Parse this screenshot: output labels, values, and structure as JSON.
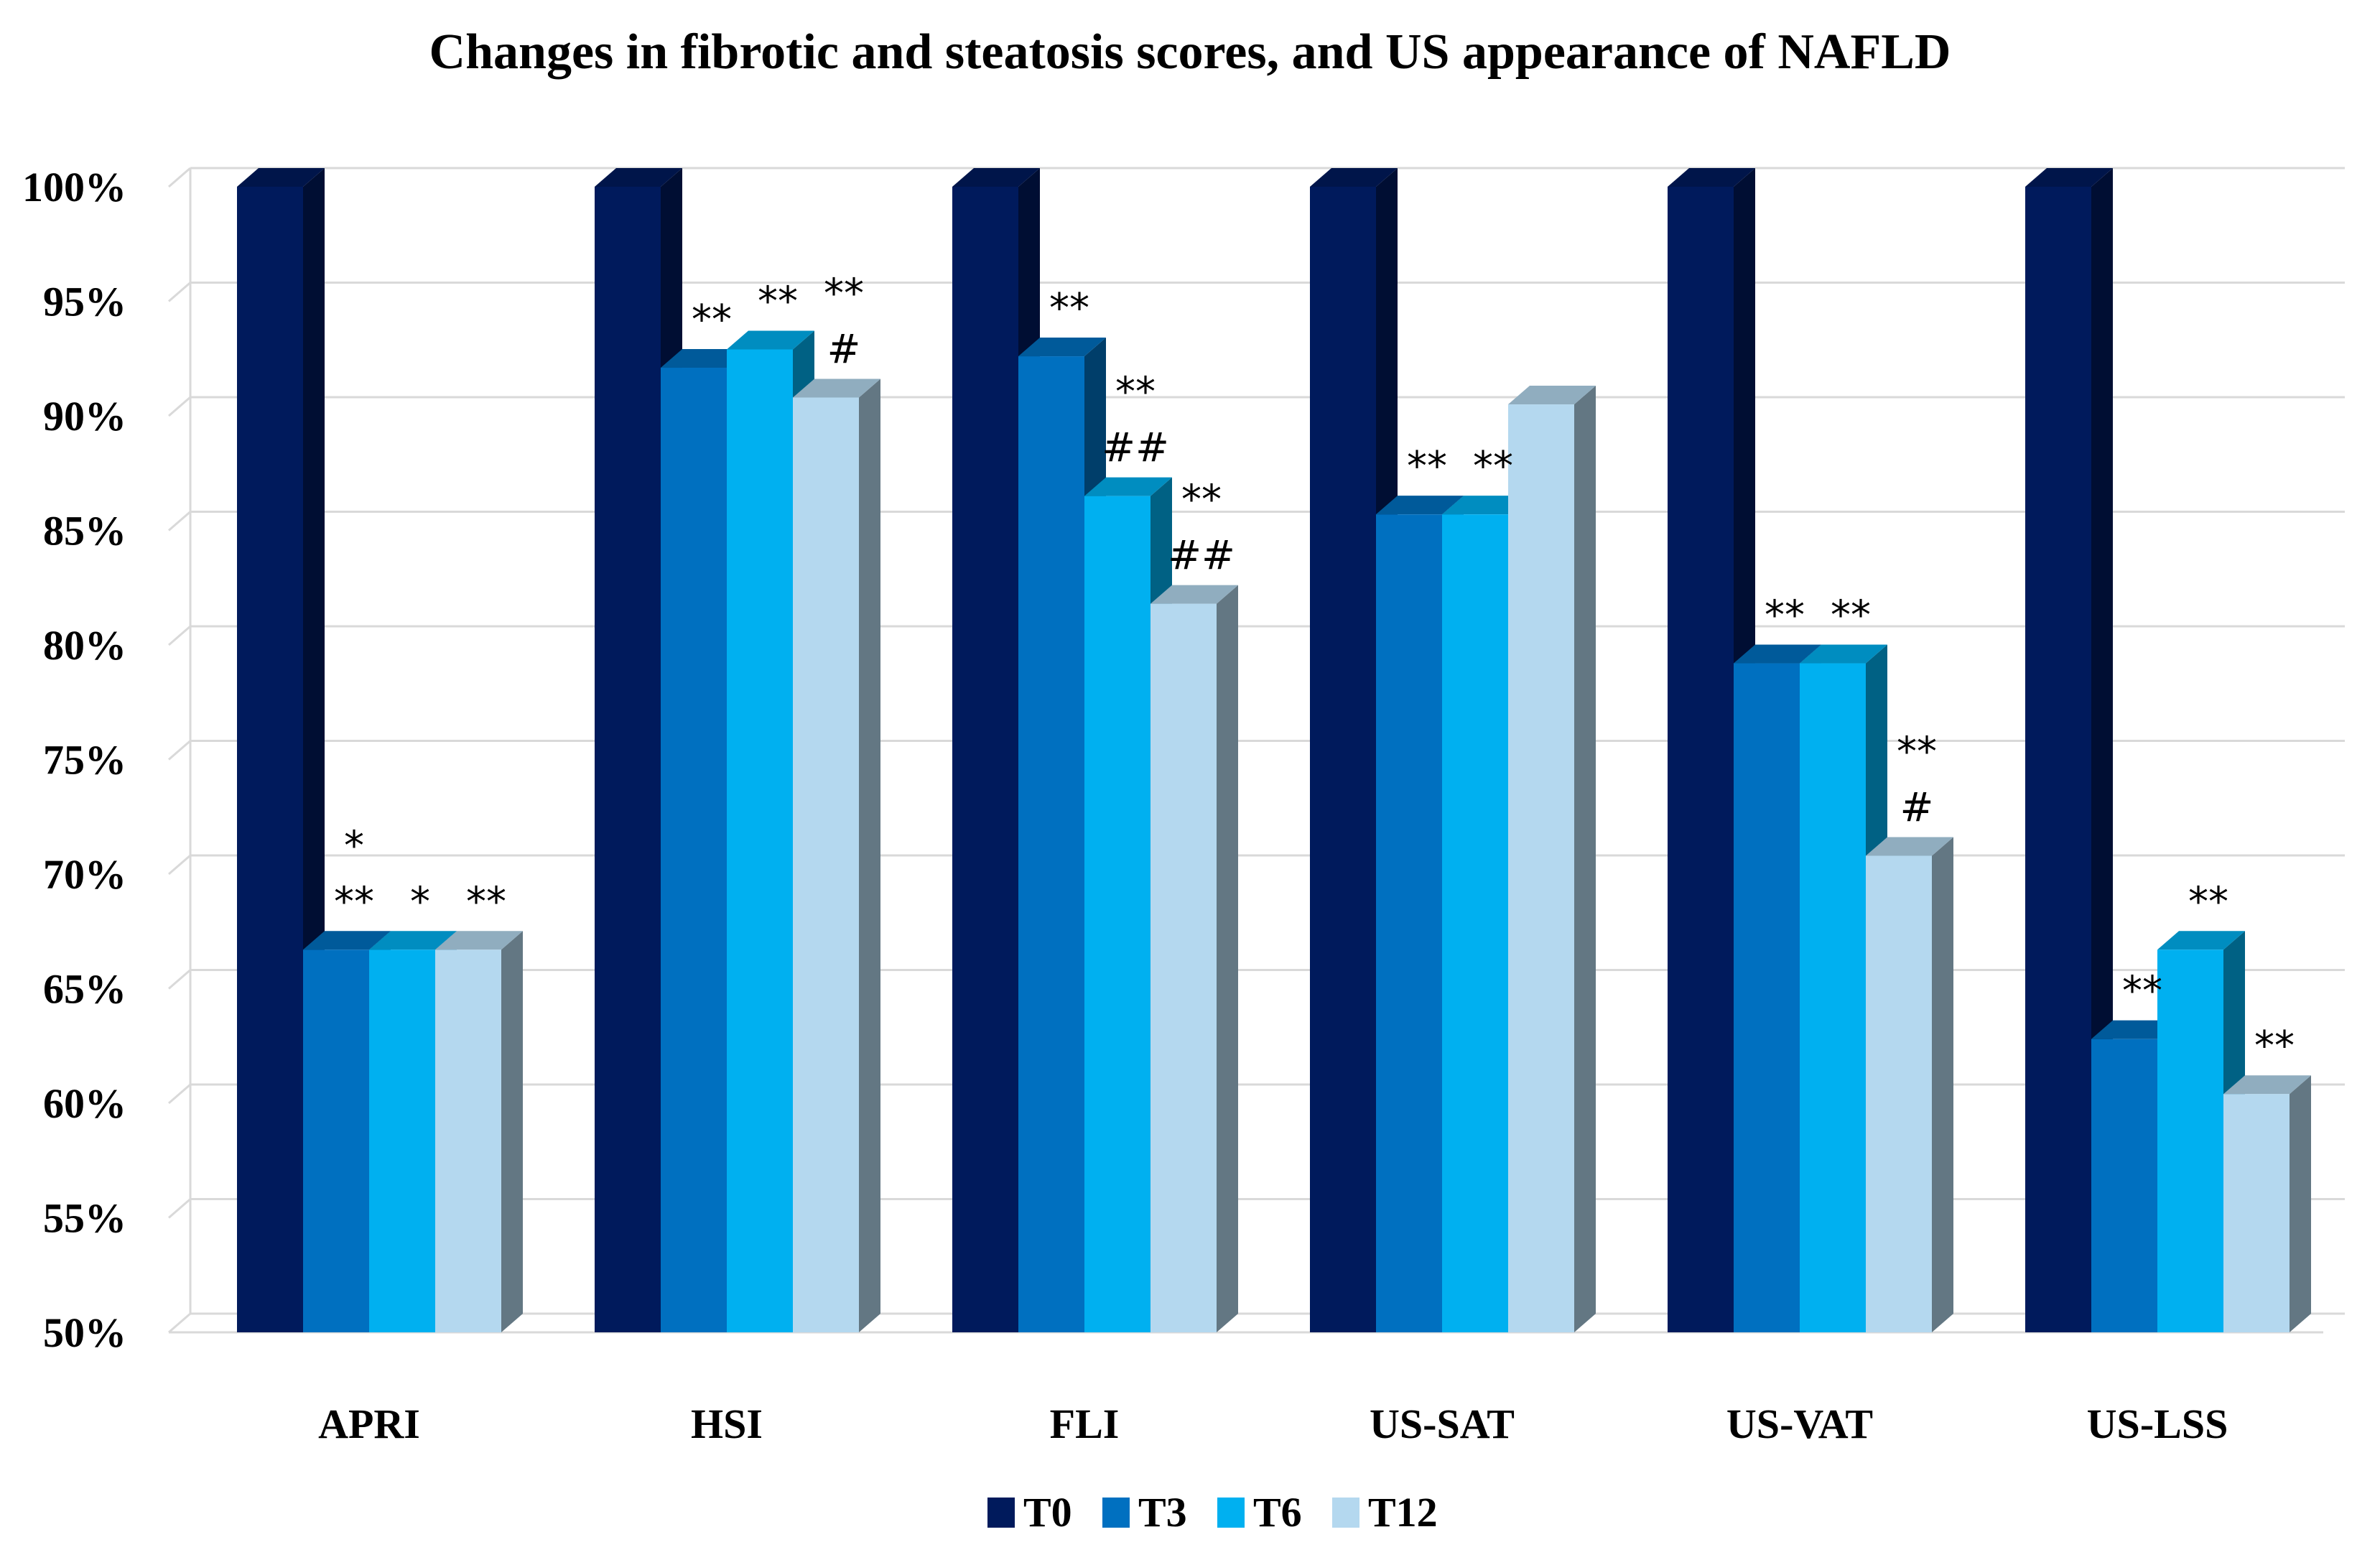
{
  "chart_data": {
    "type": "bar",
    "title": "Changes in fibrotic and steatosis scores, and US appearance of NAFLD",
    "xlabel": "",
    "ylabel": "",
    "ylim": [
      50,
      100
    ],
    "yticks": [
      "50%",
      "55%",
      "60%",
      "65%",
      "70%",
      "75%",
      "80%",
      "85%",
      "90%",
      "95%",
      "100%"
    ],
    "categories": [
      "APRI",
      "HSI",
      "FLI",
      "US-SAT",
      "US-VAT",
      "US-LSS"
    ],
    "series": [
      {
        "name": "T0",
        "color": "#001a5c",
        "values": [
          100,
          100,
          100,
          100,
          100,
          100
        ]
      },
      {
        "name": "T3",
        "color": "#0070c0",
        "values": [
          66.7,
          92.1,
          92.6,
          85.7,
          79.2,
          62.8
        ]
      },
      {
        "name": "T6",
        "color": "#00b0f0",
        "values": [
          66.7,
          92.9,
          86.5,
          85.7,
          79.2,
          66.7
        ]
      },
      {
        "name": "T12",
        "color": "#b4d8ef",
        "values": [
          66.7,
          90.8,
          81.8,
          90.5,
          70.8,
          60.4
        ]
      }
    ],
    "annotations": [
      [
        [],
        [
          "*",
          "**"
        ],
        [
          "*"
        ],
        [
          "**"
        ]
      ],
      [
        [],
        [
          "**"
        ],
        [
          "**"
        ],
        [
          "**",
          "#"
        ]
      ],
      [
        [],
        [
          "**"
        ],
        [
          "**",
          "##"
        ],
        [
          "**",
          "##"
        ]
      ],
      [
        [],
        [
          "**"
        ],
        [
          "**"
        ],
        []
      ],
      [
        [],
        [
          "**"
        ],
        [
          "**"
        ],
        [
          "**",
          "#"
        ]
      ],
      [
        [],
        [
          "**"
        ],
        [
          "**"
        ],
        [
          "**"
        ]
      ]
    ],
    "legend": "bottom",
    "grid": true
  }
}
